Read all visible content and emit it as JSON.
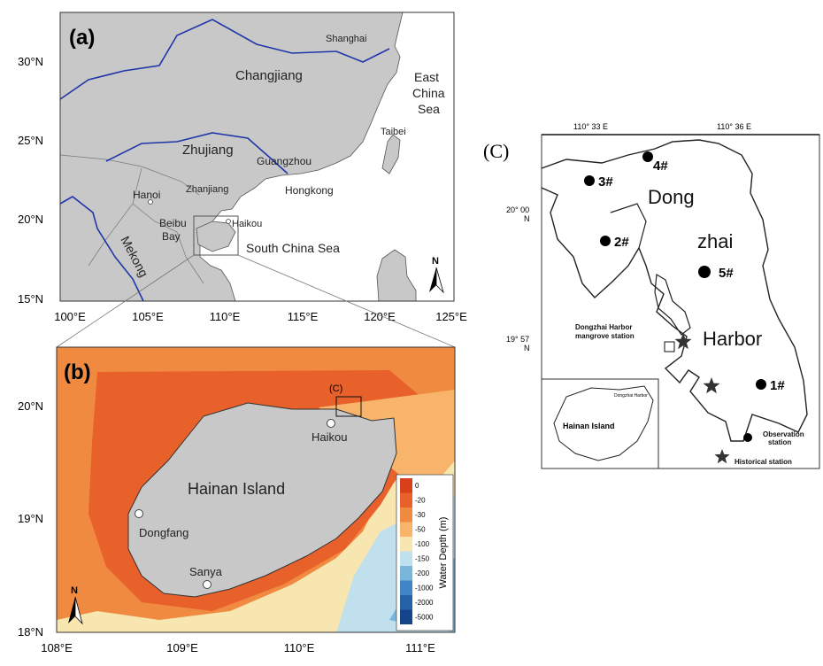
{
  "panel_a": {
    "label": "(a)",
    "lat_ticks": [
      "30°N",
      "25°N",
      "20°N",
      "15°N"
    ],
    "lon_ticks": [
      "100°E",
      "105°E",
      "110°E",
      "115°E",
      "120°E",
      "125°E"
    ],
    "places": {
      "shanghai": "Shanghai",
      "changjiang": "Changjiang",
      "east_china_sea_1": "East",
      "east_china_sea_2": "China",
      "east_china_sea_3": "Sea",
      "taibei": "Taibei",
      "zhujiang": "Zhujiang",
      "guangzhou": "Guangzhou",
      "hongkong": "Hongkong",
      "hanoi": "Hanoi",
      "zhanjiang": "Zhanjiang",
      "haikou": "Haikou",
      "beibu_1": "Beibu",
      "beibu_2": "Bay",
      "south_china_sea": "South China Sea",
      "mekong": "Mekong"
    },
    "north": "N"
  },
  "panel_b": {
    "label": "(b)",
    "c_label": "(C)",
    "lat_ticks": [
      "20°N",
      "19°N",
      "18°N"
    ],
    "lon_ticks": [
      "108°E",
      "109°E",
      "110°E",
      "111°E"
    ],
    "island": "Hainan Island",
    "cities": {
      "haikou": "Haikou",
      "dongfang": "Dongfang",
      "sanya": "Sanya"
    },
    "north": "N",
    "legend": {
      "title": "Water Depth (m)",
      "levels": [
        "0",
        "-20",
        "-30",
        "-50",
        "-100",
        "-150",
        "-200",
        "-1000",
        "-2000",
        "-5000"
      ],
      "colors": [
        "#d8401a",
        "#e8602a",
        "#f08a40",
        "#f7b46a",
        "#f7e6b0",
        "#bfe0ec",
        "#7ab6dc",
        "#3f86c6",
        "#2463a8",
        "#14448a"
      ]
    }
  },
  "panel_c": {
    "label": "(C)",
    "top_ticks": [
      "110° 33 E",
      "110° 36 E"
    ],
    "lat_ticks": {
      "l1": "20° 00",
      "l1n": "N",
      "l2": "19° 57",
      "l2n": "N"
    },
    "stations": [
      "1#",
      "2#",
      "3#",
      "4#",
      "5#"
    ],
    "words": {
      "dong": "Dong",
      "zhai": "zhai",
      "harbor": "Harbor"
    },
    "mangrove_1": "Dongzhai Harbor",
    "mangrove_2": "mangrove station",
    "inset_title_1": "Hainan Island",
    "inset_mini": "Dongzhai Harbor",
    "legend_obs_1": "Observation",
    "legend_obs_2": "station",
    "legend_hist": "Historical station"
  }
}
